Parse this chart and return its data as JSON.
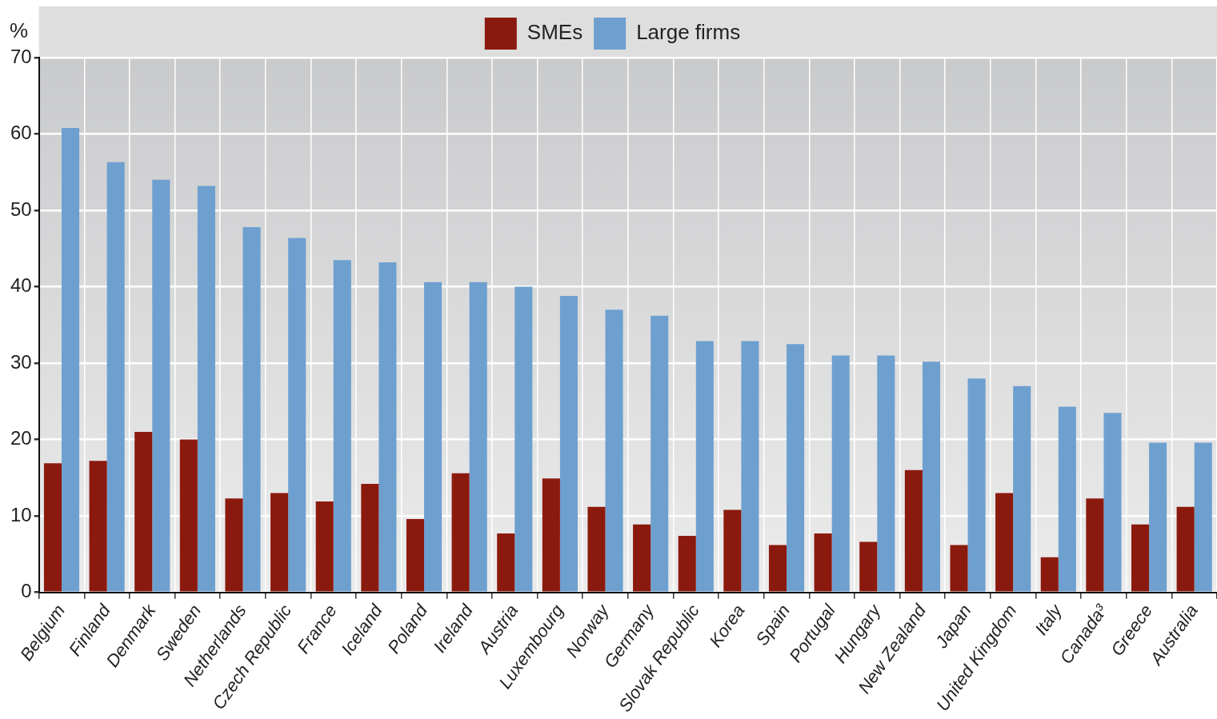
{
  "chart_data": {
    "type": "bar",
    "ylabel": "%",
    "categories": [
      "Belgium",
      "Finland",
      "Denmark",
      "Sweden",
      "Netherlands",
      "Czech Republic",
      "France",
      "Iceland",
      "Poland",
      "Ireland",
      "Austria",
      "Luxembourg",
      "Norway",
      "Germany",
      "Slovak Republic",
      "Korea",
      "Spain",
      "Portugal",
      "Hungary",
      "New Zealand",
      "Japan",
      "United Kingdom",
      "Italy",
      "Canada³",
      "Greece",
      "Australia"
    ],
    "series": [
      {
        "name": "SMEs",
        "color": "#8b1a0e",
        "values": [
          16.9,
          17.2,
          21,
          20,
          12.3,
          13,
          11.9,
          14.2,
          9.6,
          15.6,
          7.7,
          14.9,
          11.2,
          8.9,
          7.4,
          10.8,
          6.2,
          7.7,
          6.6,
          16,
          6.2,
          13,
          4.6,
          12.3,
          8.9,
          11.2
        ]
      },
      {
        "name": "Large firms",
        "color": "#6ea0cf",
        "values": [
          60.8,
          56.3,
          54,
          53.2,
          47.8,
          46.4,
          43.5,
          43.2,
          40.6,
          40.6,
          40,
          38.8,
          37,
          36.2,
          32.9,
          32.9,
          32.5,
          31,
          31,
          30.2,
          28,
          27,
          24.3,
          23.5,
          19.6,
          19.6
        ]
      }
    ],
    "ylim": [
      0,
      70
    ],
    "yticks": [
      0,
      10,
      20,
      30,
      40,
      50,
      60,
      70
    ],
    "grid": true,
    "legend": "top"
  }
}
